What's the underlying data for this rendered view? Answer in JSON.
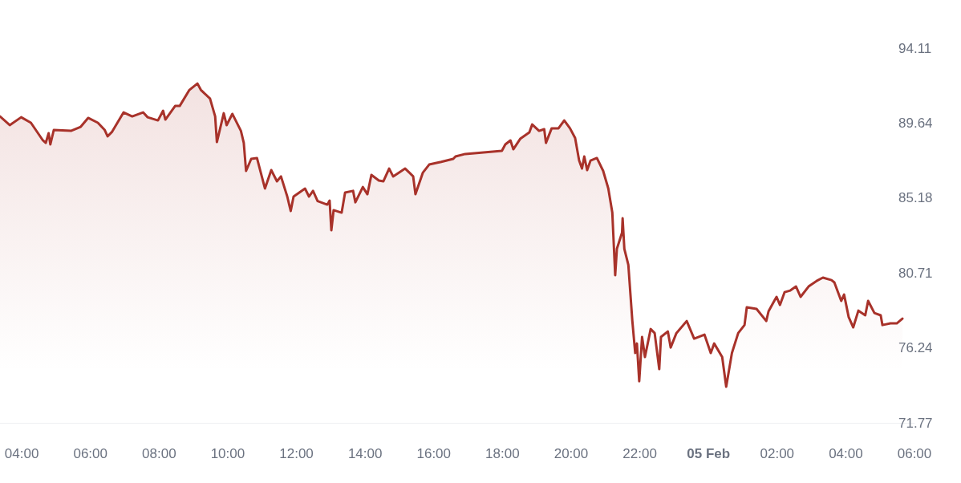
{
  "chart_data": {
    "type": "area",
    "xlim": [
      "--02-04T03:22",
      "--02-05T06:00"
    ],
    "xticks": [
      {
        "value": "--02-04T04:00",
        "label": "04:00"
      },
      {
        "value": "--02-04T06:00",
        "label": "06:00"
      },
      {
        "value": "--02-04T08:00",
        "label": "08:00"
      },
      {
        "value": "--02-04T10:00",
        "label": "10:00"
      },
      {
        "value": "--02-04T12:00",
        "label": "12:00"
      },
      {
        "value": "--02-04T14:00",
        "label": "14:00"
      },
      {
        "value": "--02-04T16:00",
        "label": "16:00"
      },
      {
        "value": "--02-04T18:00",
        "label": "18:00"
      },
      {
        "value": "--02-04T20:00",
        "label": "20:00"
      },
      {
        "value": "--02-04T22:00",
        "label": "22:00"
      },
      {
        "value": "--02-05T00:00",
        "label": "05 Feb"
      },
      {
        "value": "--02-05T02:00",
        "label": "02:00"
      },
      {
        "value": "--02-05T04:00",
        "label": "04:00"
      },
      {
        "value": "--02-05T06:00",
        "label": "06:00"
      }
    ],
    "ylim": [
      71.77,
      94.11
    ],
    "yticks": [
      71.77,
      76.24,
      80.71,
      85.18,
      89.64,
      94.11
    ],
    "grid": false,
    "marker": "none",
    "line_style": "solid",
    "series": [
      {
        "color": "#a8322a",
        "x": [
          "--02-04T03:22",
          "--02-04T03:39",
          "--02-04T03:59",
          "--02-04T04:16",
          "--02-04T04:37",
          "--02-04T04:42",
          "--02-04T04:47",
          "--02-04T04:50",
          "--02-04T04:56",
          "--02-04T05:26",
          "--02-04T05:43",
          "--02-04T05:56",
          "--02-04T06:13",
          "--02-04T06:25",
          "--02-04T06:30",
          "--02-04T06:38",
          "--02-04T06:58",
          "--02-04T07:13",
          "--02-04T07:32",
          "--02-04T07:40",
          "--02-04T07:58",
          "--02-04T08:07",
          "--02-04T08:11",
          "--02-04T08:28",
          "--02-04T08:36",
          "--02-04T08:53",
          "--02-04T09:07",
          "--02-04T09:13",
          "--02-04T09:29",
          "--02-04T09:38",
          "--02-04T09:41",
          "--02-04T09:53",
          "--02-04T09:58",
          "--02-04T10:08",
          "--02-04T10:23",
          "--02-04T10:28",
          "--02-04T10:32",
          "--02-04T10:41",
          "--02-04T10:51",
          "--02-04T11:05",
          "--02-04T11:16",
          "--02-04T11:26",
          "--02-04T11:33",
          "--02-04T11:44",
          "--02-04T11:50",
          "--02-04T11:55",
          "--02-04T12:15",
          "--02-04T12:22",
          "--02-04T12:29",
          "--02-04T12:37",
          "--02-04T12:54",
          "--02-04T12:58",
          "--02-04T13:01",
          "--02-04T13:05",
          "--02-04T13:19",
          "--02-04T13:25",
          "--02-04T13:39",
          "--02-04T13:43",
          "--02-04T13:56",
          "--02-04T14:04",
          "--02-04T14:11",
          "--02-04T14:24",
          "--02-04T14:32",
          "--02-04T14:42",
          "--02-04T14:49",
          "--02-04T15:10",
          "--02-04T15:24",
          "--02-04T15:28",
          "--02-04T15:41",
          "--02-04T15:52",
          "--02-04T16:13",
          "--02-04T16:34",
          "--02-04T16:38",
          "--02-04T16:55",
          "--02-04T17:59",
          "--02-04T18:05",
          "--02-04T18:14",
          "--02-04T18:19",
          "--02-04T18:31",
          "--02-04T18:47",
          "--02-04T18:52",
          "--02-04T19:04",
          "--02-04T19:13",
          "--02-04T19:16",
          "--02-04T19:26",
          "--02-04T19:38",
          "--02-04T19:48",
          "--02-04T19:58",
          "--02-04T20:07",
          "--02-04T20:14",
          "--02-04T20:19",
          "--02-04T20:23",
          "--02-04T20:28",
          "--02-04T20:34",
          "--02-04T20:45",
          "--02-04T20:56",
          "--02-04T21:05",
          "--02-04T21:12",
          "--02-04T21:17",
          "--02-04T21:20",
          "--02-04T21:29",
          "--02-04T21:30",
          "--02-04T21:33",
          "--02-04T21:40",
          "--02-04T21:47",
          "--02-04T21:52",
          "--02-04T21:55",
          "--02-04T21:59",
          "--02-04T22:04",
          "--02-04T22:09",
          "--02-04T22:19",
          "--02-04T22:26",
          "--02-04T22:34",
          "--02-04T22:37",
          "--02-04T22:49",
          "--02-04T22:54",
          "--02-04T23:04",
          "--02-04T23:22",
          "--02-04T23:35",
          "--02-04T23:53",
          "--02-05T00:04",
          "--02-05T00:10",
          "--02-05T00:24",
          "--02-05T00:31",
          "--02-05T00:41",
          "--02-05T00:52",
          "--02-05T01:03",
          "--02-05T01:07",
          "--02-05T01:24",
          "--02-05T01:41",
          "--02-05T01:45",
          "--02-05T01:55",
          "--02-05T01:59",
          "--02-05T02:05",
          "--02-05T02:13",
          "--02-05T02:23",
          "--02-05T02:33",
          "--02-05T02:41",
          "--02-05T02:55",
          "--02-05T03:09",
          "--02-05T03:20",
          "--02-05T03:35",
          "--02-05T03:40",
          "--02-05T03:52",
          "--02-05T03:57",
          "--02-05T04:05",
          "--02-05T04:13",
          "--02-05T04:22",
          "--02-05T04:34",
          "--02-05T04:39",
          "--02-05T04:50",
          "--02-05T05:01",
          "--02-05T05:04",
          "--02-05T05:18",
          "--02-05T05:29",
          "--02-05T05:39"
        ],
        "values": [
          90.04,
          89.52,
          89.99,
          89.66,
          88.61,
          88.46,
          89.04,
          88.37,
          89.23,
          89.18,
          89.42,
          89.95,
          89.66,
          89.23,
          88.85,
          89.13,
          90.28,
          90.04,
          90.28,
          89.99,
          89.8,
          90.38,
          89.85,
          90.66,
          90.66,
          91.62,
          92.0,
          91.62,
          91.1,
          90.04,
          88.51,
          90.23,
          89.52,
          90.19,
          89.18,
          88.46,
          86.79,
          87.51,
          87.56,
          85.74,
          86.84,
          86.17,
          86.46,
          85.26,
          84.4,
          85.26,
          85.74,
          85.26,
          85.6,
          84.99,
          84.78,
          85.02,
          83.25,
          84.45,
          84.3,
          85.5,
          85.6,
          84.92,
          85.83,
          85.4,
          86.55,
          86.22,
          86.17,
          86.93,
          86.46,
          86.93,
          86.46,
          85.4,
          86.69,
          87.17,
          87.33,
          87.51,
          87.65,
          87.8,
          87.99,
          88.37,
          88.61,
          88.08,
          88.7,
          89.09,
          89.56,
          89.18,
          89.28,
          88.46,
          89.33,
          89.33,
          89.8,
          89.33,
          88.75,
          87.41,
          86.93,
          87.65,
          86.84,
          87.41,
          87.56,
          86.79,
          85.74,
          84.3,
          80.57,
          82.15,
          83.11,
          83.97,
          82.15,
          81.19,
          77.84,
          75.93,
          76.5,
          74.25,
          76.89,
          75.69,
          77.36,
          77.12,
          74.97,
          76.89,
          77.22,
          76.26,
          77.12,
          77.84,
          76.79,
          77.03,
          75.93,
          76.5,
          75.69,
          73.92,
          75.93,
          77.12,
          77.6,
          78.66,
          78.56,
          77.84,
          78.42,
          79.04,
          79.28,
          78.8,
          79.56,
          79.66,
          79.9,
          79.28,
          79.9,
          80.23,
          80.43,
          80.28,
          80.14,
          79.04,
          79.42,
          78.08,
          77.46,
          78.46,
          78.18,
          79.04,
          78.32,
          78.18,
          77.6,
          77.7,
          77.7,
          77.98
        ]
      }
    ]
  }
}
